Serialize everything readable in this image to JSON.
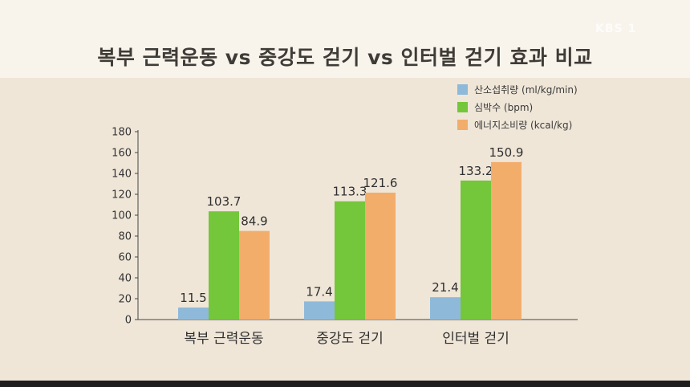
{
  "title": "복부 근력운동 vs 중강도 걷기 vs 인터벌 걷기 효과 비교",
  "watermark": "KBS 1",
  "colors": {
    "oxygen": "#8fb9d9",
    "heart": "#74c63a",
    "energy": "#f3ad6b",
    "background": "#efe6d8",
    "title_band": "#f8f4ec"
  },
  "chart_data": {
    "type": "bar",
    "categories": [
      "복부 근력운동",
      "중강도 걷기",
      "인터벌 걷기"
    ],
    "series": [
      {
        "name": "산소섭취량 (ml/kg/min)",
        "values": [
          11.5,
          17.4,
          21.4
        ],
        "color": "#8fb9d9"
      },
      {
        "name": "심박수 (bpm)",
        "values": [
          103.7,
          113.3,
          133.2
        ],
        "color": "#74c63a"
      },
      {
        "name": "에너지소비량 (kcal/kg)",
        "values": [
          84.9,
          121.6,
          150.9
        ],
        "color": "#f3ad6b"
      }
    ],
    "yticks": [
      0,
      20,
      40,
      60,
      80,
      100,
      120,
      140,
      160,
      180
    ],
    "ylim": [
      0,
      180
    ],
    "xlabel": "",
    "ylabel": "",
    "grid": false,
    "legend": "top-right"
  }
}
